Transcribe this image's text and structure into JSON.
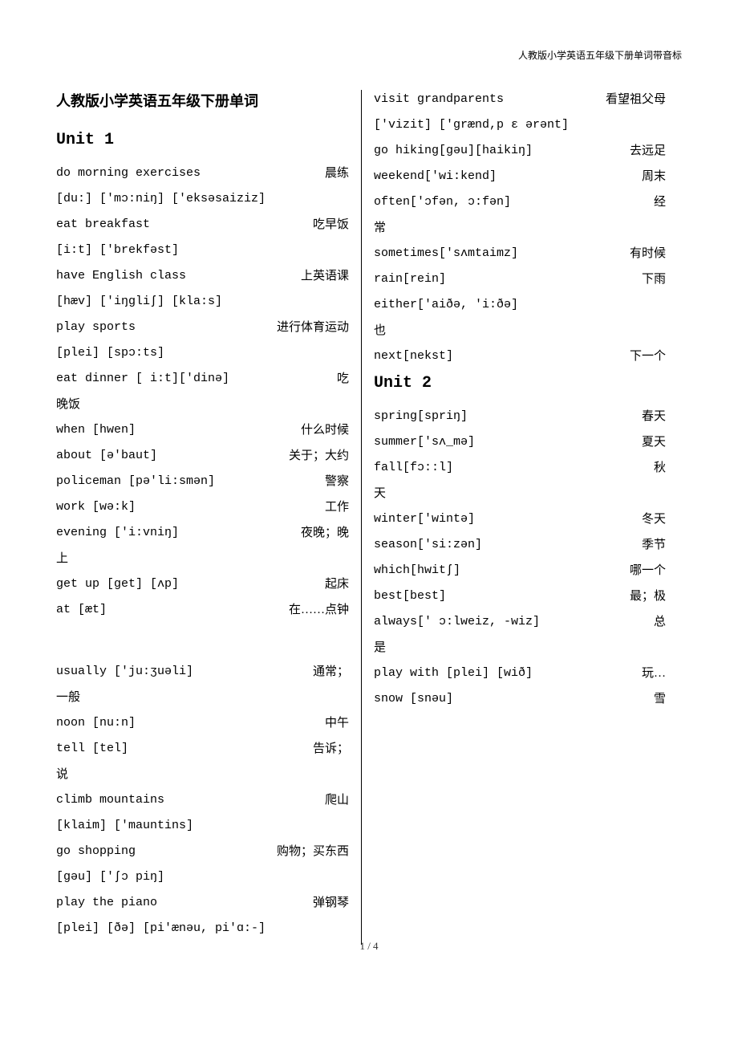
{
  "header_note": "人教版小学英语五年级下册单词带音标",
  "main_title": "人教版小学英语五年级下册单词",
  "units": {
    "unit1": "Unit 1",
    "unit2": "Unit 2"
  },
  "left_col": {
    "e1": {
      "en": "do morning exercises",
      "cn": "晨练"
    },
    "e1p": "[du:] ['mɔ:niŋ] ['eksəsaiziz]",
    "e2": {
      "en": "eat breakfast",
      "cn": "吃早饭"
    },
    "e2p": "[i:t] ['brekfəst]",
    "e3": {
      "en": "have English class",
      "cn": "上英语课"
    },
    "e3p": "[hæv] ['iŋgliʃ] [kla:s]",
    "e4": {
      "en": "play sports",
      "cn": "进行体育运动"
    },
    "e4p": "[plei] [spɔ:ts]",
    "e5": {
      "en": "eat dinner [ i:t]['dinə]",
      "cn": "吃"
    },
    "e5c": "晚饭",
    "e6": {
      "en": "when  [hwen]",
      "cn": "什么时候"
    },
    "e7": {
      "en": "about [ə'baut]",
      "cn": "关于；大约"
    },
    "e8": {
      "en": "policeman [pə'li:smən]",
      "cn": "警察"
    },
    "e9": {
      "en": "work [wə:k]",
      "cn": "工作"
    },
    "e10": {
      "en": "evening ['i:vniŋ]",
      "cn": "夜晚；晚"
    },
    "e10c": "上",
    "e11": {
      "en": "get up [get]  [ʌp]",
      "cn": "起床"
    },
    "e12": {
      "en": "at  [æt]",
      "cn": "在……点钟"
    },
    "e13": {
      "en": "usually ['ju:ʒuəli]",
      "cn": "通常；"
    },
    "e13c": "一般",
    "e14": {
      "en": "noon [nu:n]",
      "cn": "中午"
    },
    "e15": {
      "en": "tell [tel]",
      "cn": "告诉；"
    },
    "e15c": "说",
    "e16": {
      "en": "climb mountains",
      "cn": "爬山"
    },
    "e16p": "[klaim]  ['mauntins]",
    "e17": {
      "en": "go shopping",
      "cn": "购物；买东西"
    },
    "e17p": "[gəu] ['ʃɔ piŋ]",
    "e18": {
      "en": "play the piano",
      "cn": "弹钢琴"
    },
    "e18p": "[plei] [ðə] [pi'ænəu, pi'ɑ:-]"
  },
  "right_col": {
    "e1": {
      "en": "visit grandparents",
      "cn": "看望祖父母"
    },
    "e1p": "['vizit] ['grænd,p ɛ ərənt]",
    "e2": {
      "en": "go hiking[gəu][haikiŋ]",
      "cn": "去远足"
    },
    "e3": {
      "en": "weekend['wi:kend]",
      "cn": "周末"
    },
    "e4": {
      "en": "often['ɔfən, ɔ:fən]",
      "cn": "经"
    },
    "e4c": "常",
    "e5": {
      "en": "sometimes['sʌmtaimz]",
      "cn": "有时候"
    },
    "e6": {
      "en": "rain[rein]",
      "cn": "下雨"
    },
    "e7": {
      "en": "either['aiðə, 'i:ðə]",
      "cn": ""
    },
    "e7c": "也",
    "e8": {
      "en": "next[nekst]",
      "cn": "下一个"
    },
    "u2e1": {
      "en": "spring[spriŋ]",
      "cn": "春天"
    },
    "u2e2": {
      "en": "summer['sʌ_mə]",
      "cn": "夏天"
    },
    "u2e3": {
      "en": "fall[fɔ::l]",
      "cn": "秋"
    },
    "u2e3c": "天",
    "u2e4": {
      "en": "winter['wintə]",
      "cn": "冬天"
    },
    "u2e5": {
      "en": "season['si:zən]",
      "cn": "季节"
    },
    "u2e6": {
      "en": "which[hwitʃ]",
      "cn": "哪一个"
    },
    "u2e7": {
      "en": "best[best]",
      "cn": "最；极"
    },
    "u2e8": {
      "en": "always[' ɔ:lweiz, -wiz]",
      "cn": "总"
    },
    "u2e8c": "是",
    "u2e9": {
      "en": "play with [plei] [wið]",
      "cn": "玩…"
    },
    "u2e10": {
      "en": "snow [snəu]",
      "cn": "雪"
    }
  },
  "footer": "1 / 4"
}
